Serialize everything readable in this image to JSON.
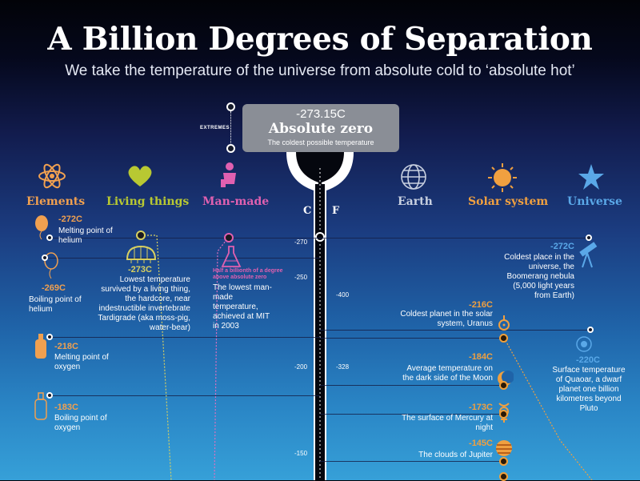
{
  "title": "A Billion Degrees of Separation",
  "subtitle": "We take the temperature of the universe from absolute cold to ‘absolute hot’",
  "extremes_label": "EXTREMES",
  "callout": {
    "temp": "-273.15C",
    "name": "Absolute zero",
    "desc": "The coldest possible temperature"
  },
  "scale": {
    "c_label": "C",
    "f_label": "F"
  },
  "categories": [
    {
      "name": "Elements",
      "icon": "atom-icon",
      "color": "#f0a050"
    },
    {
      "name": "Living things",
      "icon": "heart-icon",
      "color": "#b8c832"
    },
    {
      "name": "Man-made",
      "icon": "person-icon",
      "color": "#e060b0"
    },
    {
      "name": "Earth",
      "icon": "globe-icon",
      "color": "#c8d0e0"
    },
    {
      "name": "Solar system",
      "icon": "sun-icon",
      "color": "#f0a040"
    },
    {
      "name": "Universe",
      "icon": "star-icon",
      "color": "#5aa8e8"
    }
  ],
  "c_ticks": [
    "-270",
    "-250",
    "-200",
    "-150"
  ],
  "f_ticks": [
    "-400",
    "-328"
  ],
  "elements": [
    {
      "temp": "-272C",
      "desc": "Melting point of helium"
    },
    {
      "temp": "-269C",
      "desc": "Boiling point of helium"
    },
    {
      "temp": "-218C",
      "desc": "Melting point of oxygen"
    },
    {
      "temp": "-183C",
      "desc": "Boiling point of oxygen"
    }
  ],
  "living": {
    "temp": "-273C",
    "desc": "Lowest temperature survived by a living thing, the hardcore, near indestructible invertebrate Tardigrade (aka moss-pig, water-bear)"
  },
  "manmade": {
    "note": "Half a billionth of a degree above absolute zero",
    "desc": "The lowest man-made temperature, achieved at MIT in 2003"
  },
  "universe": [
    {
      "temp": "-272C",
      "desc": "Coldest place in the universe, the Boomerang nebula (5,000 light years from Earth)"
    },
    {
      "temp": "-220C",
      "desc": "Surface temperature of Quaoar, a dwarf planet one billion kilometres beyond Pluto"
    }
  ],
  "solar": [
    {
      "temp": "-216C",
      "desc": "Coldest planet in the solar system, Uranus"
    },
    {
      "temp": "-184C",
      "desc": "Average temperature on the dark side of the Moon"
    },
    {
      "temp": "-173C",
      "desc": "The surface of Mercury at night"
    },
    {
      "temp": "-145C",
      "desc": "The clouds of Jupiter"
    }
  ]
}
